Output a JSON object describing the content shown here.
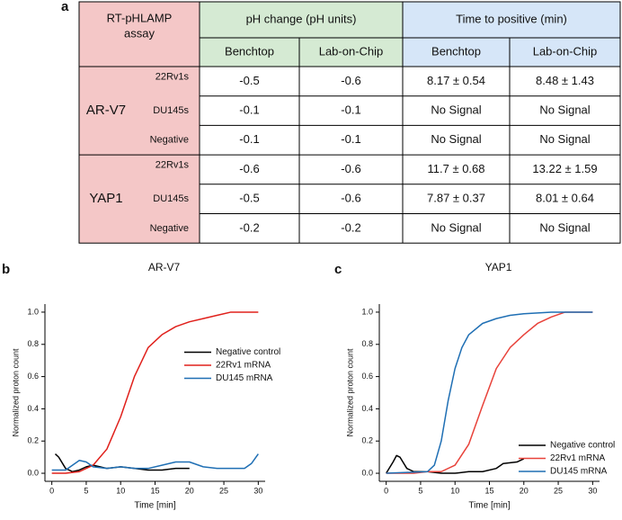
{
  "table": {
    "panel": "a",
    "corner": "RT-pHLAMP assay",
    "group_headers": [
      "pH change (pH units)",
      "Time to positive (min)"
    ],
    "sub_headers": [
      "Benchtop",
      "Lab-on-Chip",
      "Benchtop",
      "Lab-on-Chip"
    ],
    "groups": [
      {
        "name": "AR-V7",
        "rows": [
          [
            "22Rv1s",
            "-0.5",
            "-0.6",
            "8.17 ± 0.54",
            "8.48 ± 1.43"
          ],
          [
            "DU145s",
            "-0.1",
            "-0.1",
            "No Signal",
            "No Signal"
          ],
          [
            "Negative",
            "-0.1",
            "-0.1",
            "No Signal",
            "No Signal"
          ]
        ]
      },
      {
        "name": "YAP1",
        "rows": [
          [
            "22Rv1s",
            "-0.6",
            "-0.6",
            "11.7 ± 0.68",
            "13.22 ± 1.59"
          ],
          [
            "DU145s",
            "-0.5",
            "-0.6",
            "7.87 ± 0.37",
            "8.01 ±  0.64"
          ],
          [
            "Negative",
            "-0.2",
            "-0.2",
            "No Signal",
            "No Signal"
          ]
        ]
      }
    ]
  },
  "chart_data": [
    {
      "type": "line",
      "panel": "b",
      "title": "AR-V7",
      "xlabel": "Time [min]",
      "ylabel": "Normalized proton count",
      "xlim": [
        -1,
        31
      ],
      "ylim": [
        -0.05,
        1.05
      ],
      "xticks": [
        0,
        5,
        10,
        15,
        20,
        25,
        30
      ],
      "yticks": [
        {
          "value": 0,
          "label": "0.0"
        },
        0.2,
        0.4,
        0.6,
        0.8,
        {
          "value": 1,
          "label": "1.0"
        }
      ],
      "legend": "center right",
      "series": [
        {
          "name": "Negative control",
          "color": "#000000",
          "x": [
            0.5,
            1,
            2,
            3,
            4,
            5,
            6,
            7,
            8,
            10,
            12,
            14,
            16,
            18,
            20
          ],
          "values": [
            0.12,
            0.1,
            0.03,
            0.01,
            0.02,
            0.04,
            0.05,
            0.04,
            0.03,
            0.04,
            0.03,
            0.02,
            0.02,
            0.03,
            0.03
          ]
        },
        {
          "name": "22Rv1 mRNA",
          "color": "#e0201b",
          "x": [
            0,
            2,
            4,
            6,
            8,
            10,
            12,
            14,
            16,
            18,
            20,
            22,
            24,
            26,
            30
          ],
          "values": [
            0,
            0,
            0.01,
            0.05,
            0.15,
            0.35,
            0.6,
            0.78,
            0.86,
            0.91,
            0.94,
            0.96,
            0.98,
            1.0,
            1.0
          ]
        },
        {
          "name": "DU145 mRNA",
          "color": "#1f6fb4",
          "x": [
            0,
            2,
            3,
            4,
            5,
            6,
            8,
            10,
            12,
            14,
            16,
            18,
            20,
            22,
            24,
            26,
            28,
            29,
            30
          ],
          "values": [
            0.02,
            0.02,
            0.05,
            0.08,
            0.07,
            0.04,
            0.03,
            0.04,
            0.03,
            0.03,
            0.05,
            0.07,
            0.07,
            0.04,
            0.03,
            0.03,
            0.03,
            0.06,
            0.12
          ]
        }
      ]
    },
    {
      "type": "line",
      "panel": "c",
      "title": "YAP1",
      "xlabel": "Time [min]",
      "ylabel": "Normalized proton count",
      "xlim": [
        -1,
        31
      ],
      "ylim": [
        -0.05,
        1.05
      ],
      "xticks": [
        0,
        5,
        10,
        15,
        20,
        25,
        30
      ],
      "yticks": [
        {
          "value": 0,
          "label": "0.0"
        },
        0.2,
        0.4,
        0.6,
        0.8,
        {
          "value": 1,
          "label": "1.0"
        }
      ],
      "legend": "lower right",
      "series": [
        {
          "name": "Negative control",
          "color": "#000000",
          "x": [
            0,
            1,
            1.5,
            2,
            3,
            4,
            6,
            8,
            10,
            12,
            14,
            16,
            17,
            19,
            20
          ],
          "values": [
            0,
            0.07,
            0.11,
            0.1,
            0.03,
            0.01,
            0.01,
            0,
            0,
            0.01,
            0.01,
            0.03,
            0.06,
            0.07,
            0.09
          ]
        },
        {
          "name": "22Rv1 mRNA",
          "color": "#e8423a",
          "x": [
            0,
            4,
            6,
            8,
            10,
            12,
            14,
            16,
            18,
            20,
            22,
            24,
            26,
            30
          ],
          "values": [
            0,
            0,
            0.01,
            0.01,
            0.05,
            0.18,
            0.42,
            0.65,
            0.78,
            0.86,
            0.93,
            0.97,
            1.0,
            1.0
          ]
        },
        {
          "name": "DU145 mRNA",
          "color": "#1f6fb4",
          "x": [
            0,
            6,
            7,
            8,
            9,
            10,
            11,
            12,
            14,
            16,
            18,
            20,
            24,
            30
          ],
          "values": [
            0,
            0.01,
            0.05,
            0.2,
            0.45,
            0.65,
            0.78,
            0.86,
            0.93,
            0.96,
            0.98,
            0.99,
            1.0,
            1.0
          ]
        }
      ]
    }
  ]
}
